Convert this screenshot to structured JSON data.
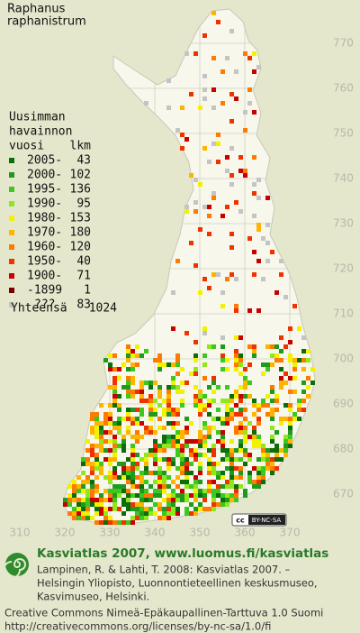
{
  "title": [
    "Raphanus",
    "raphanistrum"
  ],
  "legend": {
    "header": [
      "Uusimman",
      "havainnon",
      "vuosi",
      "lkm"
    ],
    "entries": [
      {
        "label": "2005-",
        "count": 43,
        "color": "#0b6e0b"
      },
      {
        "label": "2000-",
        "count": 102,
        "color": "#1f9a1f"
      },
      {
        "label": "1995-",
        "count": 136,
        "color": "#3cc81e"
      },
      {
        "label": "1990-",
        "count": 95,
        "color": "#8fe81e"
      },
      {
        "label": "1980-",
        "count": 153,
        "color": "#f2f200"
      },
      {
        "label": "1970-",
        "count": 180,
        "color": "#ffb400"
      },
      {
        "label": "1960-",
        "count": 120,
        "color": "#ff7a00"
      },
      {
        "label": "1950-",
        "count": 40,
        "color": "#ee3300"
      },
      {
        "label": "1900-",
        "count": 71,
        "color": "#c80000"
      },
      {
        "label": "-1899",
        "count": 1,
        "color": "#7a0000"
      },
      {
        "label": "???",
        "count": 83,
        "color": "#c4c4c4"
      }
    ],
    "total_label": "Yhteensä",
    "total": 1024
  },
  "y_labels": [
    770,
    760,
    750,
    740,
    730,
    720,
    710,
    700,
    690,
    680,
    670
  ],
  "x_labels": [
    310,
    320,
    330,
    340,
    350,
    360,
    370
  ],
  "license_badge": [
    "cc",
    "BY-NC-SA"
  ],
  "footer": {
    "heading": "Kasviatlas 2007, www.luomus.fi/kasviatlas",
    "citation": [
      "Lampinen, R. & Lahti, T. 2008: Kasviatlas 2007. –",
      "Helsingin Yliopisto, Luonnontieteellinen keskusmuseo,",
      "Kasvimuseo, Helsinki."
    ],
    "license": [
      "Creative Commons Nimeä-Epäkaupallinen-Tarttuva 1.0 Suomi",
      "http://creativecommons.org/licenses/by-nc-sa/1.0/fi"
    ]
  }
}
